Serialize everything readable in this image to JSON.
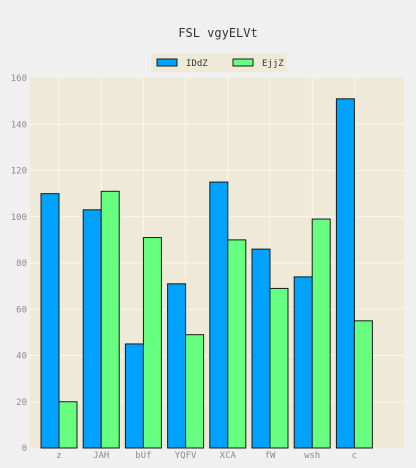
{
  "chart_data": {
    "type": "bar",
    "title": "FSL vgyELVt",
    "xlabel": "",
    "ylabel": "",
    "categories": [
      "z",
      "JAH",
      "bUf",
      "YQFV",
      "XCA",
      "fW",
      "wsh",
      "c"
    ],
    "series": [
      {
        "name": "IDdZ",
        "color": "#00a2ff",
        "values": [
          110,
          103,
          45,
          71,
          115,
          86,
          74,
          151
        ]
      },
      {
        "name": "EjjZ",
        "color": "#66ff80",
        "values": [
          20,
          111,
          91,
          49,
          90,
          69,
          99,
          55
        ]
      }
    ],
    "ylim": [
      0,
      160
    ],
    "yticks": [
      0,
      20,
      40,
      60,
      80,
      100,
      120,
      140,
      160
    ],
    "grid": true,
    "legend_position": "top-center",
    "colors": {
      "plot_background": "#efe9d8",
      "page_background": "#f0f0f0",
      "grid": "#fbf8f0",
      "bar_edge": "#1a1a1a"
    }
  }
}
